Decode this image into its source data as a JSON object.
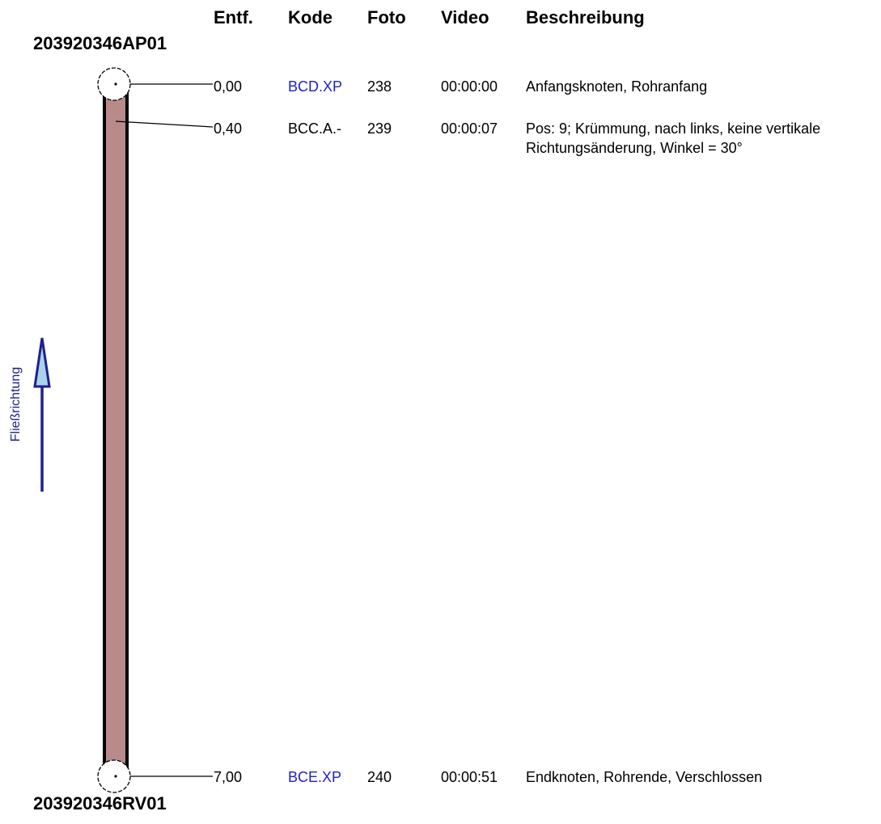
{
  "headers": {
    "dist": "Entf.",
    "code": "Kode",
    "foto": "Foto",
    "video": "Video",
    "desc": "Beschreibung"
  },
  "start_node": "203920346AP01",
  "end_node": "203920346RV01",
  "flow_label": "Fließrichtung",
  "colors": {
    "pipe_fill": "#b88a89",
    "link_code": "#2020d0",
    "arrow": "#1f1f8f",
    "arrow_fill": "#a9d4e8"
  },
  "observations": [
    {
      "dist": "0,00",
      "code": "BCD.XP",
      "code_link": true,
      "foto": "238",
      "video": "00:00:00",
      "desc": "Anfangsknoten, Rohranfang"
    },
    {
      "dist": "0,40",
      "code": "BCC.A.-",
      "code_link": false,
      "foto": "239",
      "video": "00:00:07",
      "desc": "Pos: 9; Krümmung, nach links, keine vertikale\nRichtungsänderung, Winkel = 30°"
    },
    {
      "dist": "7,00",
      "code": "BCE.XP",
      "code_link": true,
      "foto": "240",
      "video": "00:00:51",
      "desc": "Endknoten, Rohrende, Verschlossen"
    }
  ]
}
